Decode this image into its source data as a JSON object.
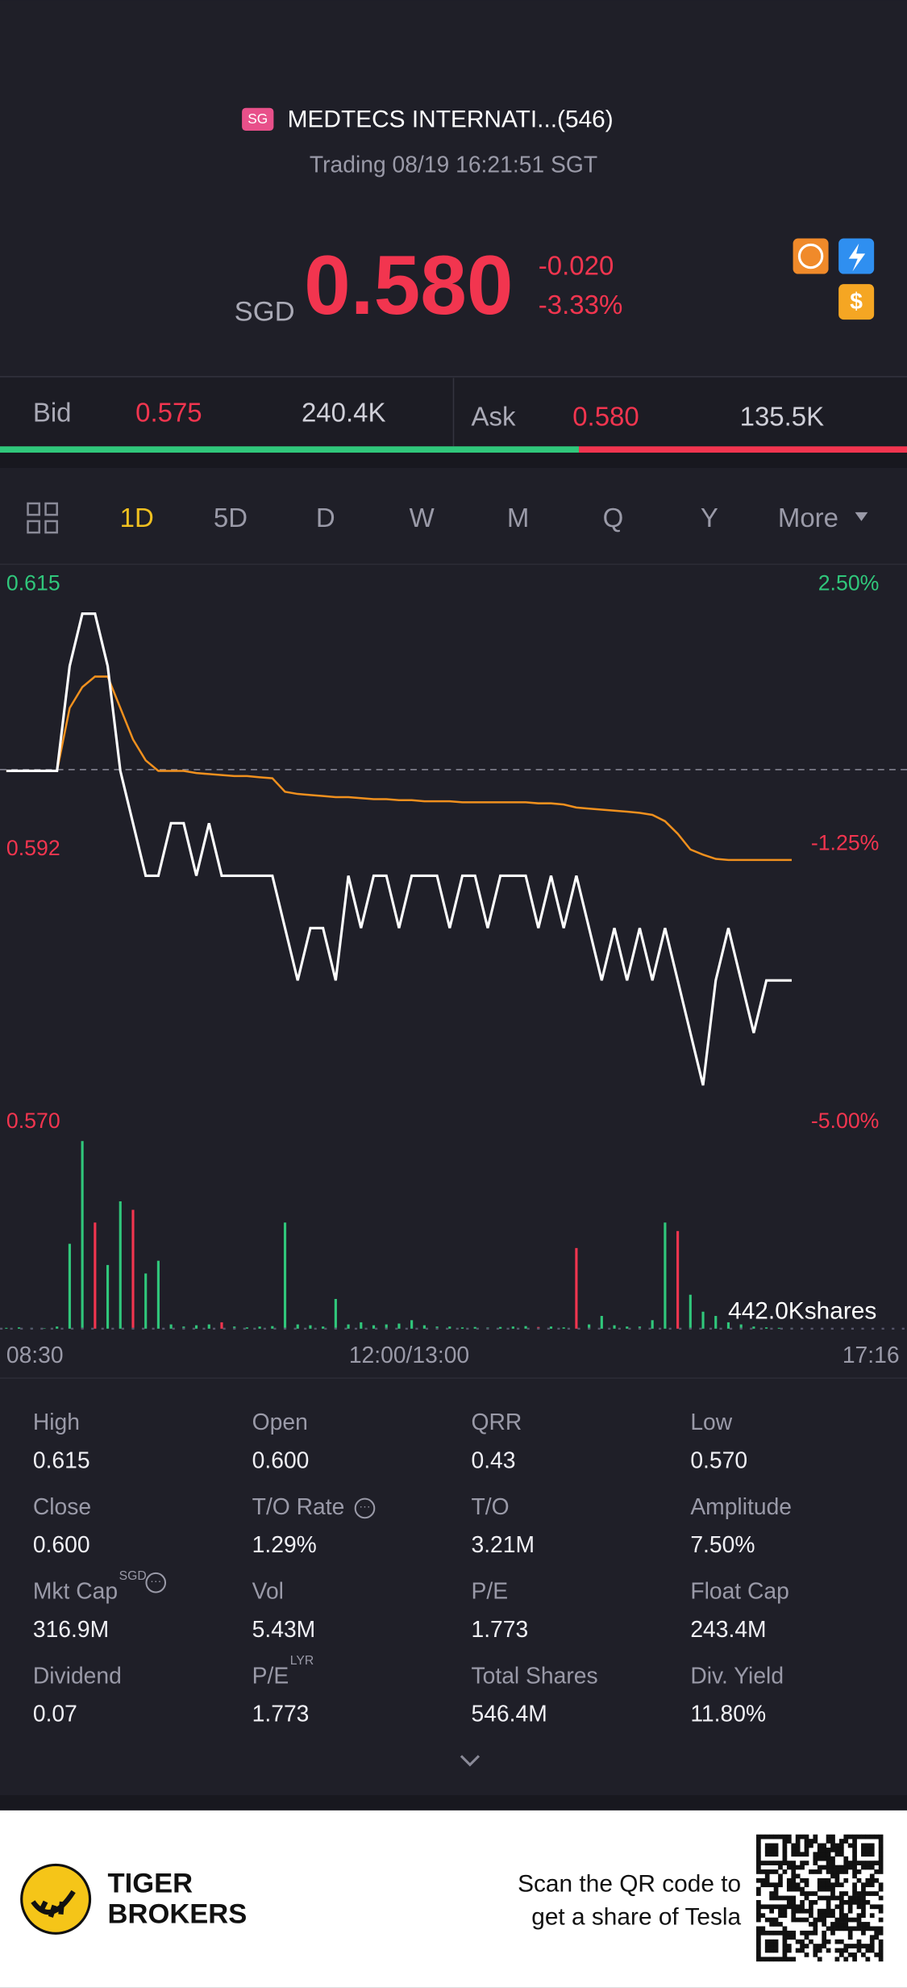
{
  "header": {
    "badge": "SG",
    "title": "MEDTECS INTERNATI...(546)",
    "status": "Trading 08/19 16:21:51 SGT",
    "currency": "SGD",
    "price": "0.580",
    "change": "-0.020",
    "change_pct": "-3.33%"
  },
  "quote": {
    "bid_label": "Bid",
    "bid_price": "0.575",
    "bid_size": "240.4K",
    "ask_label": "Ask",
    "ask_price": "0.580",
    "ask_size": "135.5K"
  },
  "tabs": {
    "items": [
      "1D",
      "5D",
      "D",
      "W",
      "M",
      "Q",
      "Y",
      "More"
    ],
    "active": 0
  },
  "chart_data": {
    "type": "line",
    "ylim": [
      0.57,
      0.615
    ],
    "yticks": [
      0.615,
      0.592,
      {
        "value": 0.57,
        "label": "0.570"
      }
    ],
    "y2lim": [
      -5,
      2.5
    ],
    "y2ticks": [
      {
        "value": 2.5,
        "label": "2.50%"
      },
      {
        "value": -1.25,
        "label": "-1.25%"
      },
      {
        "value": -5,
        "label": "-5.00%"
      }
    ],
    "x_labels": [
      "08:30",
      "12:00/13:00",
      "17:16"
    ],
    "series": [
      {
        "name": "Price",
        "color": "#ffffff",
        "values": [
          0.6,
          0.6,
          0.6,
          0.6,
          0.6,
          0.61,
          0.615,
          0.615,
          0.61,
          0.6,
          0.595,
          0.59,
          0.59,
          0.595,
          0.595,
          0.59,
          0.595,
          0.59,
          0.59,
          0.59,
          0.59,
          0.59,
          0.585,
          0.58,
          0.585,
          0.585,
          0.58,
          0.59,
          0.585,
          0.59,
          0.59,
          0.585,
          0.59,
          0.59,
          0.59,
          0.585,
          0.59,
          0.59,
          0.585,
          0.59,
          0.59,
          0.59,
          0.585,
          0.59,
          0.585,
          0.59,
          0.585,
          0.58,
          0.585,
          0.58,
          0.585,
          0.58,
          0.585,
          0.58,
          0.575,
          0.57,
          0.58,
          0.585,
          0.58,
          0.575,
          0.58,
          0.58,
          0.58
        ]
      },
      {
        "name": "Average",
        "color": "#f0901e",
        "values": [
          0.6,
          0.6,
          0.6,
          0.6,
          0.6,
          0.606,
          0.608,
          0.609,
          0.609,
          0.606,
          0.603,
          0.601,
          0.6,
          0.6,
          0.6,
          0.5998,
          0.5997,
          0.5996,
          0.5995,
          0.5995,
          0.5994,
          0.5993,
          0.598,
          0.5978,
          0.5977,
          0.5976,
          0.5975,
          0.5975,
          0.5974,
          0.5973,
          0.5973,
          0.5972,
          0.5972,
          0.5971,
          0.5971,
          0.5971,
          0.597,
          0.597,
          0.597,
          0.597,
          0.597,
          0.597,
          0.5969,
          0.5969,
          0.5968,
          0.5965,
          0.5964,
          0.5963,
          0.5962,
          0.5961,
          0.596,
          0.5958,
          0.5952,
          0.594,
          0.5925,
          0.592,
          0.5916,
          0.5915,
          0.5915,
          0.5915,
          0.5915,
          0.5915,
          0.5915
        ]
      }
    ],
    "volume": {
      "label": "442.0Kshares",
      "vlim": [
        0,
        442
      ],
      "values": [
        2,
        3,
        2,
        1,
        5,
        200,
        442,
        250,
        150,
        300,
        280,
        130,
        160,
        10,
        5,
        8,
        10,
        15,
        5,
        3,
        5,
        6,
        250,
        10,
        8,
        5,
        70,
        10,
        15,
        8,
        10,
        12,
        20,
        8,
        5,
        5,
        3,
        4,
        3,
        4,
        5,
        6,
        4,
        5,
        3,
        190,
        10,
        30,
        8,
        5,
        5,
        20,
        250,
        230,
        80,
        40,
        30,
        15,
        10,
        5,
        3,
        2,
        2
      ],
      "colors": [
        "#30c77b",
        "#30c77b",
        "#30c77b",
        "#30c77b",
        "#30c77b",
        "#30c77b",
        "#30c77b",
        "#f2354f",
        "#30c77b",
        "#30c77b",
        "#f2354f",
        "#30c77b",
        "#30c77b",
        "#30c77b",
        "#30c77b",
        "#30c77b",
        "#30c77b",
        "#f2354f",
        "#30c77b",
        "#30c77b",
        "#30c77b",
        "#30c77b",
        "#30c77b",
        "#30c77b",
        "#30c77b",
        "#30c77b",
        "#30c77b",
        "#30c77b",
        "#30c77b",
        "#30c77b",
        "#30c77b",
        "#30c77b",
        "#30c77b",
        "#30c77b",
        "#30c77b",
        "#30c77b",
        "#30c77b",
        "#30c77b",
        "#30c77b",
        "#30c77b",
        "#30c77b",
        "#30c77b",
        "#f2354f",
        "#30c77b",
        "#30c77b",
        "#f2354f",
        "#30c77b",
        "#30c77b",
        "#30c77b",
        "#30c77b",
        "#30c77b",
        "#30c77b",
        "#30c77b",
        "#f2354f",
        "#30c77b",
        "#30c77b",
        "#30c77b",
        "#30c77b",
        "#30c77b",
        "#30c77b",
        "#30c77b",
        "#30c77b",
        "#30c77b"
      ]
    }
  },
  "stats": [
    {
      "label": "High",
      "value": "0.615"
    },
    {
      "label": "Open",
      "value": "0.600"
    },
    {
      "label": "QRR",
      "value": "0.43"
    },
    {
      "label": "Low",
      "value": "0.570"
    },
    {
      "label": "Close",
      "value": "0.600"
    },
    {
      "label": "T/O Rate",
      "value": "1.29%"
    },
    {
      "label": "T/O",
      "value": "3.21M"
    },
    {
      "label": "Amplitude",
      "value": "7.50%"
    },
    {
      "label": "Mkt Cap",
      "sup": "SGD",
      "value": "316.9M"
    },
    {
      "label": "Vol",
      "value": "5.43M"
    },
    {
      "label": "P/E",
      "value": "1.773"
    },
    {
      "label": "Float Cap",
      "value": "243.4M"
    },
    {
      "label": "Dividend",
      "value": "0.07"
    },
    {
      "label": "P/E",
      "sup": "LYR",
      "value": "1.773"
    },
    {
      "label": "Total Shares",
      "value": "546.4M"
    },
    {
      "label": "Div. Yield",
      "value": "11.80%"
    }
  ],
  "footer": {
    "brand_line1": "TIGER",
    "brand_line2": "BROKERS",
    "promo_line1": "Scan the QR code to",
    "promo_line2": "get a share of Tesla"
  }
}
